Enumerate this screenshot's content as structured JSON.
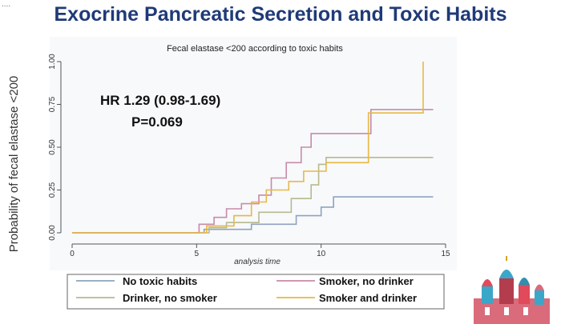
{
  "slide": {
    "title": "Exocrine Pancreatic Secretion and Toxic Habits"
  },
  "chart_data": {
    "type": "line",
    "step": true,
    "title": "Fecal elastase <200 according to toxic habits",
    "xlabel": "analysis time",
    "ylabel": "Probability of fecal elastase <200",
    "xlim": [
      0,
      15
    ],
    "ylim": [
      0,
      1
    ],
    "xticks": [
      0,
      5,
      10,
      15
    ],
    "yticks": [
      "0.00",
      "0.25",
      "0.50",
      "0.75",
      "1.00"
    ],
    "annotations": [
      "HR 1.29 (0.98-1.69)",
      "P=0.069"
    ],
    "grid": false,
    "legend_position": "bottom",
    "series": [
      {
        "name": "No toxic habits",
        "color": "#8fa3bf",
        "points": [
          [
            0,
            0
          ],
          [
            5.3,
            0
          ],
          [
            5.3,
            0.02
          ],
          [
            7.2,
            0.02
          ],
          [
            7.2,
            0.05
          ],
          [
            9,
            0.05
          ],
          [
            9,
            0.1
          ],
          [
            10,
            0.1
          ],
          [
            10,
            0.15
          ],
          [
            10.5,
            0.15
          ],
          [
            10.5,
            0.21
          ],
          [
            14.5,
            0.21
          ]
        ]
      },
      {
        "name": "Drinker, no smoker",
        "color": "#b7ba8e",
        "points": [
          [
            0,
            0
          ],
          [
            5.5,
            0
          ],
          [
            5.5,
            0.03
          ],
          [
            6.2,
            0.03
          ],
          [
            6.2,
            0.06
          ],
          [
            7.5,
            0.06
          ],
          [
            7.5,
            0.12
          ],
          [
            8.8,
            0.12
          ],
          [
            8.8,
            0.2
          ],
          [
            9.6,
            0.2
          ],
          [
            9.6,
            0.28
          ],
          [
            9.9,
            0.28
          ],
          [
            9.9,
            0.4
          ],
          [
            10.2,
            0.4
          ],
          [
            10.2,
            0.44
          ],
          [
            14.5,
            0.44
          ]
        ]
      },
      {
        "name": "Smoker, no drinker",
        "color": "#c98aa6",
        "points": [
          [
            0,
            0
          ],
          [
            5.1,
            0
          ],
          [
            5.1,
            0.05
          ],
          [
            5.7,
            0.05
          ],
          [
            5.7,
            0.09
          ],
          [
            6.2,
            0.09
          ],
          [
            6.2,
            0.14
          ],
          [
            6.8,
            0.14
          ],
          [
            6.8,
            0.17
          ],
          [
            7.5,
            0.17
          ],
          [
            7.5,
            0.22
          ],
          [
            8,
            0.22
          ],
          [
            8,
            0.32
          ],
          [
            8.6,
            0.32
          ],
          [
            8.6,
            0.41
          ],
          [
            9.2,
            0.41
          ],
          [
            9.2,
            0.5
          ],
          [
            9.6,
            0.5
          ],
          [
            9.6,
            0.58
          ],
          [
            12,
            0.58
          ],
          [
            12,
            0.72
          ],
          [
            14.5,
            0.72
          ]
        ]
      },
      {
        "name": "Smoker and drinker",
        "color": "#e8b845",
        "points": [
          [
            0,
            0
          ],
          [
            5.4,
            0
          ],
          [
            5.4,
            0.04
          ],
          [
            6.5,
            0.04
          ],
          [
            6.5,
            0.1
          ],
          [
            7.2,
            0.1
          ],
          [
            7.2,
            0.18
          ],
          [
            7.8,
            0.18
          ],
          [
            7.8,
            0.25
          ],
          [
            8.7,
            0.25
          ],
          [
            8.7,
            0.3
          ],
          [
            9.3,
            0.3
          ],
          [
            9.3,
            0.36
          ],
          [
            10.2,
            0.36
          ],
          [
            10.2,
            0.41
          ],
          [
            11.9,
            0.41
          ],
          [
            11.9,
            0.7
          ],
          [
            14.1,
            0.7
          ],
          [
            14.1,
            1.0
          ]
        ]
      }
    ]
  },
  "colors": {
    "title": "#1f3a78",
    "axis": "#555555",
    "panel": "#f7f9fb"
  }
}
